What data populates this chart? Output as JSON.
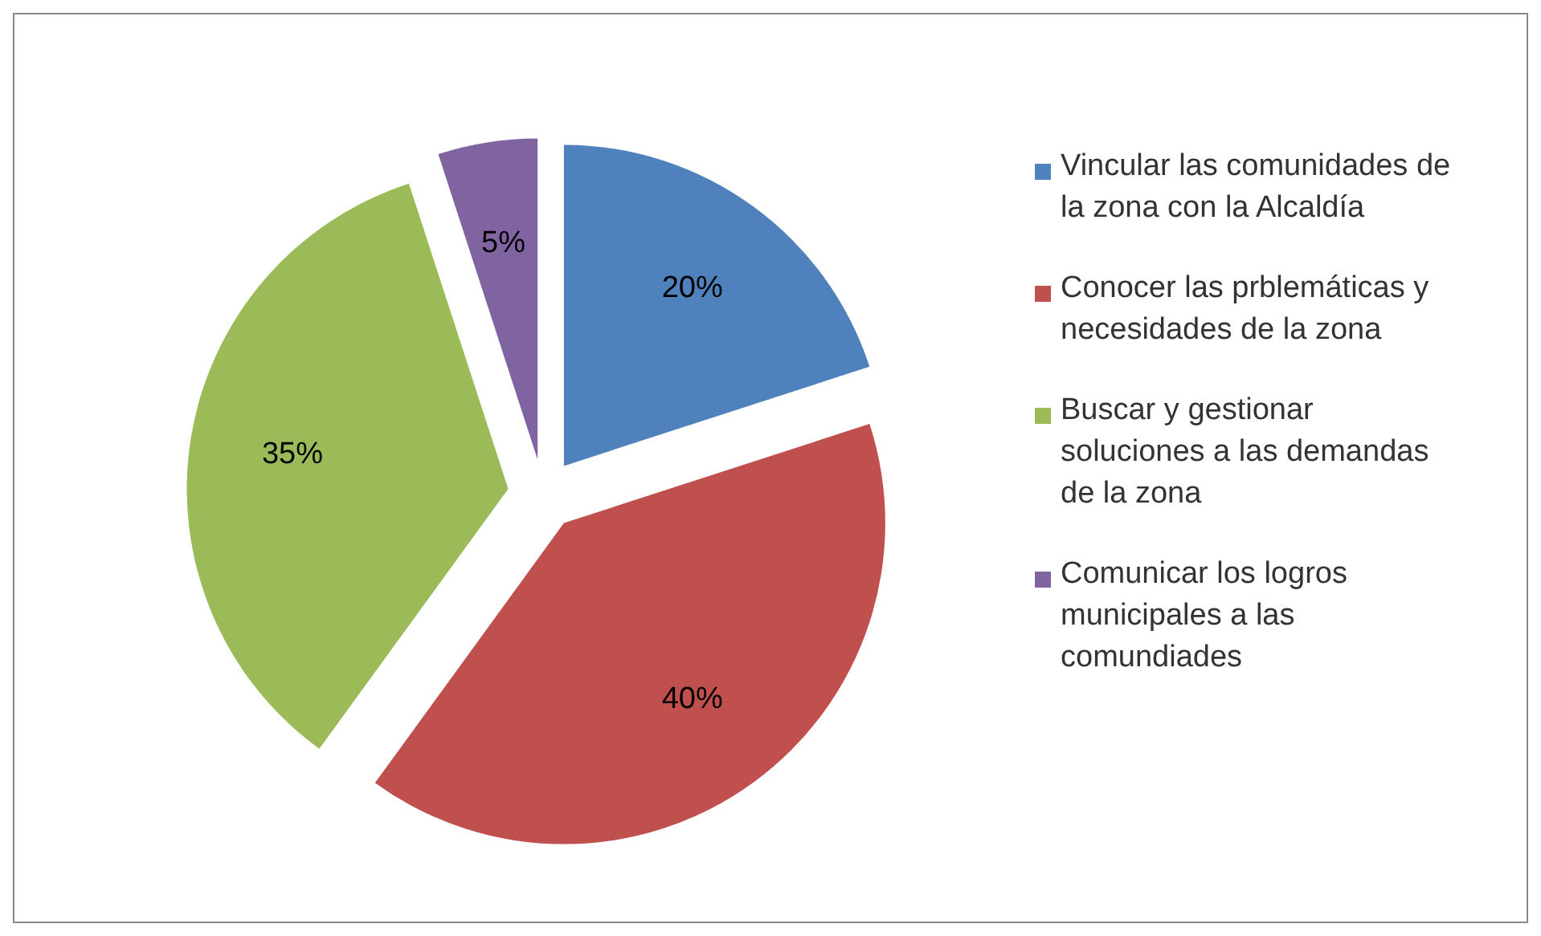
{
  "chart_data": {
    "type": "pie",
    "categories": [
      "Vincular las comunidades de la zona con la Alcaldía",
      "Conocer las prblemáticas y necesidades de la zona",
      "Buscar y gestionar soluciones a las demandas de la zona",
      "Comunicar los logros municipales a las comundiades"
    ],
    "values": [
      20,
      40,
      35,
      5
    ],
    "colors": [
      "#4f81bd",
      "#c0504d",
      "#9bbb59",
      "#8064a2"
    ],
    "value_labels": [
      "20%",
      "40%",
      "35%",
      "5%"
    ],
    "legend": "right"
  }
}
